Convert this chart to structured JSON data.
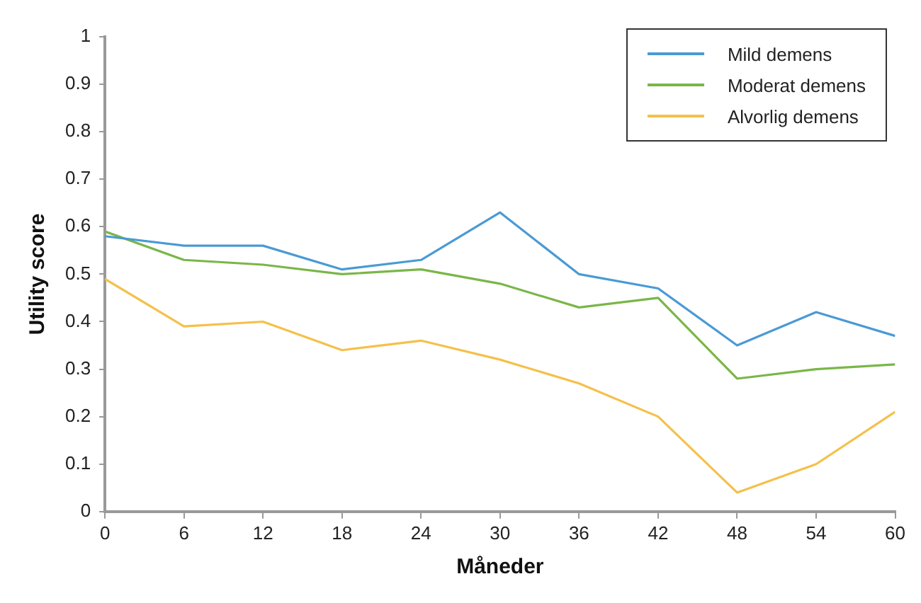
{
  "chart_data": {
    "type": "line",
    "xlabel": "Måneder",
    "ylabel": "Utility score",
    "x": [
      0,
      6,
      12,
      18,
      24,
      30,
      36,
      42,
      48,
      54,
      60
    ],
    "series": [
      {
        "name": "Mild demens",
        "color": "#4a9ad4",
        "values": [
          0.58,
          0.56,
          0.56,
          0.51,
          0.53,
          0.63,
          0.5,
          0.47,
          0.35,
          0.42,
          0.37
        ]
      },
      {
        "name": "Moderat demens",
        "color": "#7ab648",
        "values": [
          0.59,
          0.53,
          0.52,
          0.5,
          0.51,
          0.48,
          0.43,
          0.45,
          0.28,
          0.3,
          0.31
        ]
      },
      {
        "name": "Alvorlig demens",
        "color": "#f5c04a",
        "values": [
          0.49,
          0.39,
          0.4,
          0.34,
          0.36,
          0.32,
          0.27,
          0.2,
          0.04,
          0.1,
          0.21
        ]
      }
    ],
    "xlim": [
      0,
      60
    ],
    "xticks": [
      0,
      6,
      12,
      18,
      24,
      30,
      36,
      42,
      48,
      54,
      60
    ],
    "ylim": [
      0,
      1
    ],
    "yticks": [
      0,
      0.1,
      0.2,
      0.3,
      0.4,
      0.5,
      0.6,
      0.7,
      0.8,
      0.9,
      1
    ],
    "grid": false,
    "legend": "top right",
    "marker": "none",
    "line_style": "solid"
  }
}
